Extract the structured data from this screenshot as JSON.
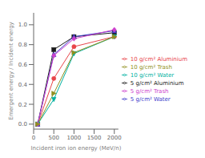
{
  "chart_data": {
    "type": "line",
    "xlabel": "Incident iron ion energy (MeV/n)",
    "ylabel": "Emergent energy / Incident energy",
    "x": [
      100,
      500,
      1000,
      2000
    ],
    "series": [
      {
        "name": "5 g/cm² Aluminium",
        "color": "#1a1a1a",
        "marker": "square",
        "values": [
          0.0,
          0.75,
          0.88,
          0.92
        ]
      },
      {
        "name": "10 g/cm² Aluminium",
        "color": "#e8454a",
        "marker": "circle",
        "values": [
          0.0,
          0.46,
          0.78,
          0.88
        ]
      },
      {
        "name": "5 g/cm² Water",
        "color": "#4040cc",
        "marker": "triangle-up",
        "values": [
          0.0,
          0.7,
          0.88,
          0.94
        ]
      },
      {
        "name": "10 g/cm² Water",
        "color": "#00b0a0",
        "marker": "triangle-down",
        "values": [
          0.0,
          0.25,
          0.71,
          0.88
        ]
      },
      {
        "name": "5 g/cm² Trash",
        "color": "#cc40cc",
        "marker": "diamond",
        "values": [
          0.0,
          0.69,
          0.86,
          0.95
        ]
      },
      {
        "name": "10 g/cm² Trash",
        "color": "#909020",
        "marker": "triangle-right",
        "values": [
          0.0,
          0.31,
          0.72,
          0.88
        ]
      }
    ],
    "xlim": [
      0,
      2100
    ],
    "ylim": [
      -0.05,
      1.12
    ],
    "xticks": [
      0,
      500,
      1000,
      1500,
      2000
    ],
    "yticks": [
      {
        "value": 0.0,
        "label": "0.0"
      },
      0.2,
      0.4,
      0.6,
      0.8,
      {
        "value": 1.0,
        "label": "1.0"
      }
    ],
    "grid": false,
    "legend": "right"
  }
}
